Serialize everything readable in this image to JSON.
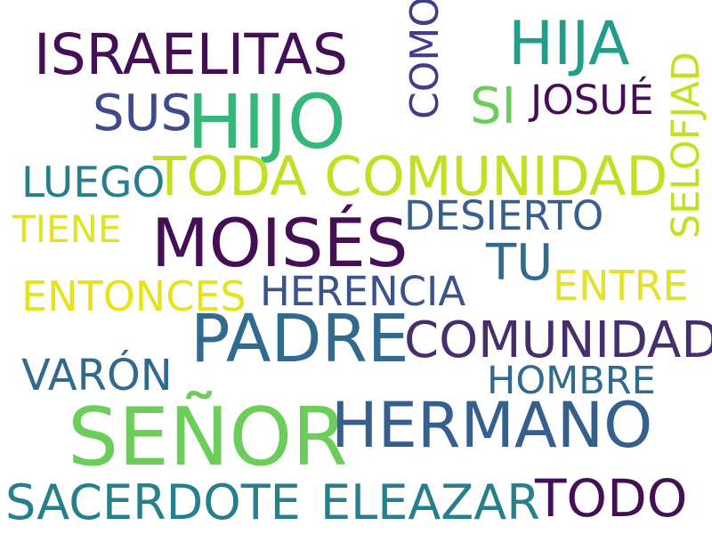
{
  "words": [
    {
      "text": "SEÑOR",
      "color": "#6ccd5a",
      "vertical": false
    },
    {
      "text": "HIJO",
      "color": "#35b779",
      "vertical": false
    },
    {
      "text": "MOISÉS",
      "color": "#440f55",
      "vertical": false
    },
    {
      "text": "PADRE",
      "color": "#306a8e",
      "vertical": false
    },
    {
      "text": "HERMANO",
      "color": "#355f8d",
      "vertical": false
    },
    {
      "text": "ISRAELITAS",
      "color": "#440f55",
      "vertical": false
    },
    {
      "text": "HIJA",
      "color": "#229d89",
      "vertical": false
    },
    {
      "text": "TODA COMUNIDAD",
      "color": "#c2df23",
      "vertical": false
    },
    {
      "text": "COMUNIDAD",
      "color": "#462e6e",
      "vertical": false
    },
    {
      "text": "SACERDOTE",
      "color": "#277f8e",
      "vertical": false
    },
    {
      "text": "ELEAZAR",
      "color": "#277f8e",
      "vertical": false
    },
    {
      "text": "TODO",
      "color": "#440f55",
      "vertical": false
    },
    {
      "text": "SUS",
      "color": "#3f4a89",
      "vertical": false
    },
    {
      "text": "SI",
      "color": "#6ccd5a",
      "vertical": false
    },
    {
      "text": "JOSUÉ",
      "color": "#440f55",
      "vertical": false
    },
    {
      "text": "TU",
      "color": "#306a8e",
      "vertical": false
    },
    {
      "text": "LUEGO",
      "color": "#277f8e",
      "vertical": false
    },
    {
      "text": "DESIERTO",
      "color": "#355f8d",
      "vertical": false
    },
    {
      "text": "TIENE",
      "color": "#e1e32a",
      "vertical": false
    },
    {
      "text": "ENTONCES",
      "color": "#e6e419",
      "vertical": false
    },
    {
      "text": "HERENCIA",
      "color": "#3b528b",
      "vertical": false
    },
    {
      "text": "ENTRE",
      "color": "#e1e32a",
      "vertical": false
    },
    {
      "text": "VARÓN",
      "color": "#306a8e",
      "vertical": false
    },
    {
      "text": "HOMBRE",
      "color": "#306a8e",
      "vertical": false
    },
    {
      "text": "COMO",
      "color": "#423e85",
      "vertical": true
    },
    {
      "text": "SELOFJAD",
      "color": "#c2df23",
      "vertical": true
    }
  ]
}
